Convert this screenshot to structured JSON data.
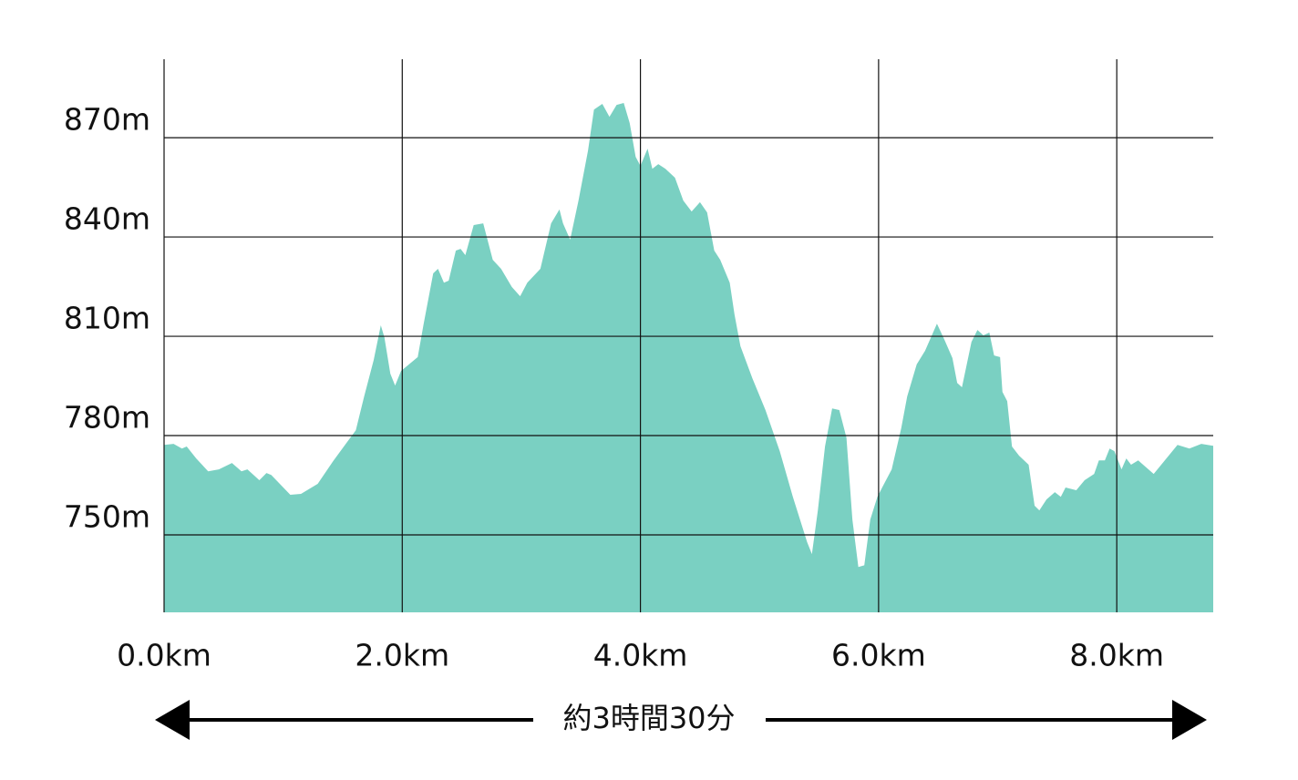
{
  "chart_data": {
    "type": "area",
    "color": "#7ad0c2",
    "grid": true,
    "annotation": "約3時間30分",
    "xlim": [
      0,
      8.81
    ],
    "ylim": [
      726.6,
      893.7
    ],
    "xticks": [
      {
        "value": 0,
        "label": "0.0km"
      },
      {
        "value": 2,
        "label": "2.0km"
      },
      {
        "value": 4,
        "label": "4.0km"
      },
      {
        "value": 6,
        "label": "6.0km"
      },
      {
        "value": 8,
        "label": "8.0km"
      }
    ],
    "yticks": [
      {
        "value": 750,
        "label": "750m"
      },
      {
        "value": 780,
        "label": "780m"
      },
      {
        "value": 810,
        "label": "810m"
      },
      {
        "value": 840,
        "label": "840m"
      },
      {
        "value": 870,
        "label": "870m"
      }
    ],
    "x": [
      0.0,
      0.08,
      0.15,
      0.19,
      0.27,
      0.37,
      0.46,
      0.57,
      0.65,
      0.7,
      0.8,
      0.86,
      0.9,
      1.06,
      1.15,
      1.29,
      1.42,
      1.61,
      1.68,
      1.76,
      1.82,
      1.85,
      1.9,
      1.94,
      1.99,
      2.13,
      2.18,
      2.26,
      2.3,
      2.35,
      2.39,
      2.45,
      2.49,
      2.53,
      2.6,
      2.68,
      2.76,
      2.83,
      2.92,
      2.99,
      3.05,
      3.16,
      3.25,
      3.32,
      3.35,
      3.41,
      3.48,
      3.56,
      3.61,
      3.68,
      3.74,
      3.8,
      3.86,
      3.91,
      3.96,
      4.0,
      4.06,
      4.1,
      4.15,
      4.21,
      4.29,
      4.36,
      4.43,
      4.5,
      4.56,
      4.62,
      4.67,
      4.75,
      4.79,
      4.84,
      4.94,
      5.05,
      5.17,
      5.28,
      5.4,
      5.44,
      5.49,
      5.55,
      5.61,
      5.67,
      5.73,
      5.78,
      5.83,
      5.88,
      5.93,
      5.99,
      6.03,
      6.11,
      6.19,
      6.24,
      6.32,
      6.39,
      6.49,
      6.55,
      6.62,
      6.66,
      6.7,
      6.78,
      6.83,
      6.88,
      6.93,
      6.97,
      7.02,
      7.04,
      7.08,
      7.12,
      7.18,
      7.26,
      7.31,
      7.35,
      7.41,
      7.48,
      7.53,
      7.57,
      7.66,
      7.73,
      7.81,
      7.85,
      7.9,
      7.94,
      7.98,
      8.04,
      8.08,
      8.12,
      8.18,
      8.31,
      8.51,
      8.61,
      8.71,
      8.81
    ],
    "values": [
      777.2,
      777.5,
      776.1,
      776.7,
      773.1,
      769.2,
      769.8,
      771.7,
      769.2,
      769.8,
      766.5,
      768.7,
      768.1,
      762.1,
      762.4,
      765.4,
      772.3,
      781.6,
      791.8,
      802.8,
      813.3,
      809.7,
      798.7,
      795.1,
      799.5,
      803.7,
      813.8,
      829.0,
      830.4,
      826.2,
      826.8,
      835.9,
      836.4,
      834.5,
      843.6,
      844.1,
      833.1,
      830.4,
      824.9,
      822.1,
      826.2,
      830.4,
      844.1,
      848.3,
      844.1,
      839.2,
      851.0,
      866.1,
      878.5,
      880.2,
      876.3,
      879.9,
      880.5,
      874.4,
      864.2,
      861.5,
      866.7,
      860.6,
      862.0,
      860.6,
      857.9,
      851.0,
      847.7,
      850.5,
      847.4,
      835.9,
      833.1,
      826.2,
      816.6,
      807.0,
      797.3,
      787.7,
      775.3,
      761.5,
      747.8,
      744.2,
      757.4,
      776.7,
      788.2,
      787.7,
      779.4,
      754.6,
      740.3,
      740.8,
      754.6,
      761.5,
      764.3,
      769.8,
      782.2,
      791.8,
      801.5,
      805.6,
      813.8,
      809.2,
      803.4,
      795.9,
      794.6,
      808.3,
      811.9,
      810.3,
      811.1,
      804.2,
      803.7,
      793.2,
      790.4,
      776.7,
      773.9,
      771.2,
      758.8,
      757.4,
      760.7,
      762.9,
      761.5,
      764.3,
      763.5,
      766.5,
      768.4,
      772.5,
      772.5,
      776.1,
      775.3,
      769.8,
      773.1,
      771.2,
      772.5,
      768.4,
      777.2,
      776.1,
      777.5,
      776.9
    ]
  }
}
